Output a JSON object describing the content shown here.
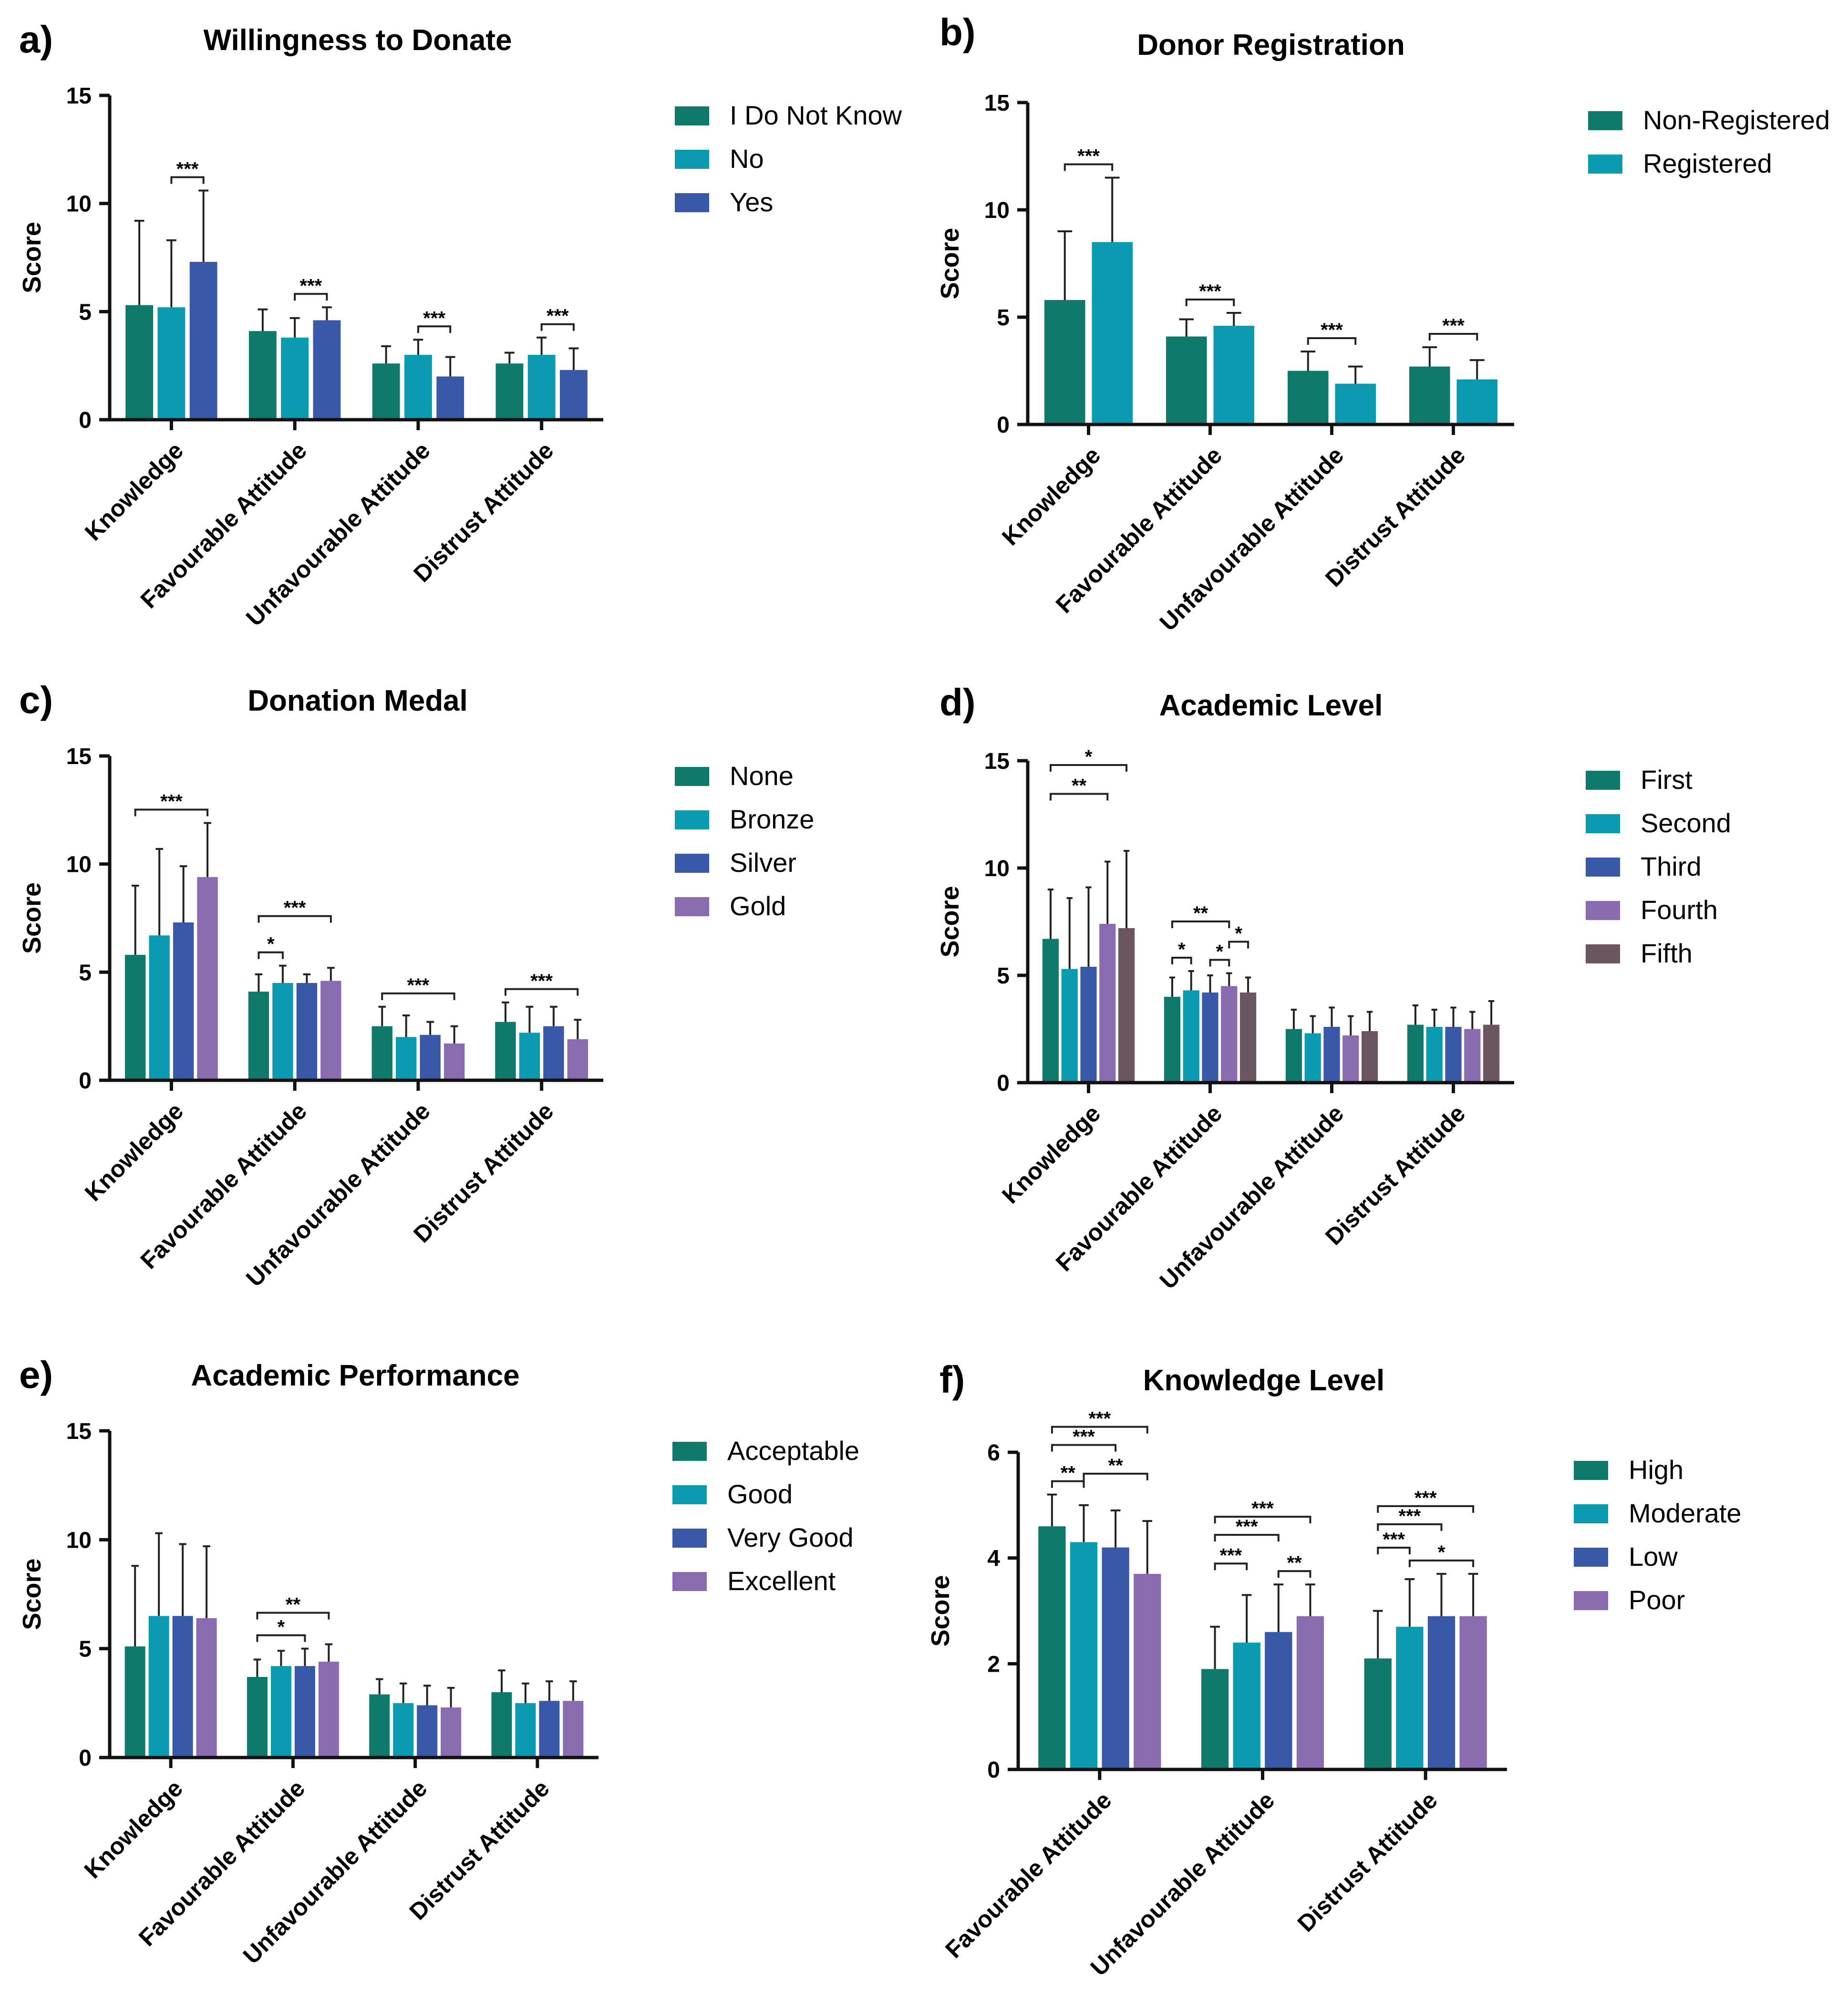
{
  "chart_data": [
    {
      "id": "a",
      "panel_label": "a)",
      "type": "bar",
      "title": "Willingness to Donate",
      "ylabel": "Score",
      "ylim": [
        0,
        15
      ],
      "yticks": [
        0,
        5,
        10,
        15
      ],
      "categories": [
        "Knowledge",
        "Favourable Attitude",
        "Unfavourable Attitude",
        "Distrust Attitude"
      ],
      "series": [
        {
          "name": "I Do Not Know",
          "color": "#0f7a6c",
          "values": [
            5.3,
            4.1,
            2.6,
            2.6
          ],
          "errors": [
            3.9,
            1.0,
            0.8,
            0.5
          ]
        },
        {
          "name": "No",
          "color": "#0a9bb0",
          "values": [
            5.2,
            3.8,
            3.0,
            3.0
          ],
          "errors": [
            3.1,
            0.9,
            0.7,
            0.8
          ]
        },
        {
          "name": "Yes",
          "color": "#3a58a8",
          "values": [
            7.3,
            4.6,
            2.0,
            2.3
          ],
          "errors": [
            3.3,
            0.6,
            0.9,
            1.0
          ]
        }
      ],
      "annotations": [
        {
          "category": 0,
          "from": 1,
          "to": 2,
          "label": "***",
          "level": 0
        },
        {
          "category": 1,
          "from": 1,
          "to": 2,
          "label": "***",
          "level": 0
        },
        {
          "category": 2,
          "from": 1,
          "to": 2,
          "label": "***",
          "level": 0
        },
        {
          "category": 3,
          "from": 1,
          "to": 2,
          "label": "***",
          "level": 0
        }
      ]
    },
    {
      "id": "b",
      "panel_label": "b)",
      "type": "bar",
      "title": "Donor Registration",
      "ylabel": "Score",
      "ylim": [
        0,
        15
      ],
      "yticks": [
        0,
        5,
        10,
        15
      ],
      "categories": [
        "Knowledge",
        "Favourable Attitude",
        "Unfavourable Attitude",
        "Distrust Attitude"
      ],
      "series": [
        {
          "name": "Non-Registered",
          "color": "#0f7a6c",
          "values": [
            5.8,
            4.1,
            2.5,
            2.7
          ],
          "errors": [
            3.2,
            0.8,
            0.9,
            0.9
          ]
        },
        {
          "name": "Registered",
          "color": "#0a9bb0",
          "values": [
            8.5,
            4.6,
            1.9,
            2.1
          ],
          "errors": [
            3.0,
            0.6,
            0.8,
            0.9
          ]
        }
      ],
      "annotations": [
        {
          "category": 0,
          "from": 0,
          "to": 1,
          "label": "***",
          "level": 0
        },
        {
          "category": 1,
          "from": 0,
          "to": 1,
          "label": "***",
          "level": 0
        },
        {
          "category": 2,
          "from": 0,
          "to": 1,
          "label": "***",
          "level": 0
        },
        {
          "category": 3,
          "from": 0,
          "to": 1,
          "label": "***",
          "level": 0
        }
      ]
    },
    {
      "id": "c",
      "panel_label": "c)",
      "type": "bar",
      "title": "Donation Medal",
      "ylabel": "Score",
      "ylim": [
        0,
        15
      ],
      "yticks": [
        0,
        5,
        10,
        15
      ],
      "categories": [
        "Knowledge",
        "Favourable Attitude",
        "Unfavourable Attitude",
        "Distrust Attitude"
      ],
      "series": [
        {
          "name": "None",
          "color": "#0f7a6c",
          "values": [
            5.8,
            4.1,
            2.5,
            2.7
          ],
          "errors": [
            3.2,
            0.8,
            0.9,
            0.9
          ]
        },
        {
          "name": "Bronze",
          "color": "#0a9bb0",
          "values": [
            6.7,
            4.5,
            2.0,
            2.2
          ],
          "errors": [
            4.0,
            0.8,
            1.0,
            1.2
          ]
        },
        {
          "name": "Silver",
          "color": "#3a58a8",
          "values": [
            7.3,
            4.5,
            2.1,
            2.5
          ],
          "errors": [
            2.6,
            0.4,
            0.6,
            0.9
          ]
        },
        {
          "name": "Gold",
          "color": "#8a6bb0",
          "values": [
            9.4,
            4.6,
            1.7,
            1.9
          ],
          "errors": [
            2.5,
            0.6,
            0.8,
            0.9
          ]
        }
      ],
      "annotations": [
        {
          "category": 0,
          "from": 0,
          "to": 3,
          "label": "***",
          "level": 0
        },
        {
          "category": 1,
          "from": 0,
          "to": 1,
          "label": "*",
          "level": 0
        },
        {
          "category": 1,
          "from": 0,
          "to": 3,
          "label": "***",
          "level": 2
        },
        {
          "category": 2,
          "from": 0,
          "to": 3,
          "label": "***",
          "level": 0
        },
        {
          "category": 3,
          "from": 0,
          "to": 3,
          "label": "***",
          "level": 0
        }
      ]
    },
    {
      "id": "d",
      "panel_label": "d)",
      "type": "bar",
      "title": "Academic Level",
      "ylabel": "Score",
      "ylim": [
        0,
        15
      ],
      "yticks": [
        0,
        5,
        10,
        15
      ],
      "categories": [
        "Knowledge",
        "Favourable Attitude",
        "Unfavourable Attitude",
        "Distrust Attitude"
      ],
      "series": [
        {
          "name": "First",
          "color": "#0f7a6c",
          "values": [
            6.7,
            4.0,
            2.5,
            2.7
          ],
          "errors": [
            2.3,
            0.9,
            0.9,
            0.9
          ]
        },
        {
          "name": "Second",
          "color": "#0a9bb0",
          "values": [
            5.3,
            4.3,
            2.3,
            2.6
          ],
          "errors": [
            3.3,
            0.9,
            0.8,
            0.8
          ]
        },
        {
          "name": "Third",
          "color": "#3a58a8",
          "values": [
            5.4,
            4.2,
            2.6,
            2.6
          ],
          "errors": [
            3.7,
            0.8,
            0.9,
            0.9
          ]
        },
        {
          "name": "Fourth",
          "color": "#8a6bb0",
          "values": [
            7.4,
            4.5,
            2.2,
            2.5
          ],
          "errors": [
            2.9,
            0.6,
            0.9,
            0.8
          ]
        },
        {
          "name": "Fifth",
          "color": "#6b5560",
          "values": [
            7.2,
            4.2,
            2.4,
            2.7
          ],
          "errors": [
            3.6,
            0.7,
            0.9,
            1.1
          ]
        }
      ],
      "annotations": [
        {
          "category": 0,
          "from": 0,
          "to": 3,
          "label": "**",
          "level": 3
        },
        {
          "category": 0,
          "from": 0,
          "to": 4,
          "label": "*",
          "level": 4
        },
        {
          "category": 1,
          "from": 0,
          "to": 1,
          "label": "*",
          "level": 0
        },
        {
          "category": 1,
          "from": 2,
          "to": 3,
          "label": "*",
          "level": 0
        },
        {
          "category": 1,
          "from": 3,
          "to": 4,
          "label": "*",
          "level": 1
        },
        {
          "category": 1,
          "from": 0,
          "to": 3,
          "label": "**",
          "level": 2
        }
      ]
    },
    {
      "id": "e",
      "panel_label": "e)",
      "type": "bar",
      "title": "Academic Performance",
      "ylabel": "Score",
      "ylim": [
        0,
        15
      ],
      "yticks": [
        0,
        5,
        10,
        15
      ],
      "categories": [
        "Knowledge",
        "Favourable Attitude",
        "Unfavourable Attitude",
        "Distrust Attitude"
      ],
      "series": [
        {
          "name": "Acceptable",
          "color": "#0f7a6c",
          "values": [
            5.1,
            3.7,
            2.9,
            3.0
          ],
          "errors": [
            3.7,
            0.8,
            0.7,
            1.0
          ]
        },
        {
          "name": "Good",
          "color": "#0a9bb0",
          "values": [
            6.5,
            4.2,
            2.5,
            2.5
          ],
          "errors": [
            3.8,
            0.7,
            0.9,
            0.9
          ]
        },
        {
          "name": "Very Good",
          "color": "#3a58a8",
          "values": [
            6.5,
            4.2,
            2.4,
            2.6
          ],
          "errors": [
            3.3,
            0.8,
            0.9,
            0.9
          ]
        },
        {
          "name": "Excellent",
          "color": "#8a6bb0",
          "values": [
            6.4,
            4.4,
            2.3,
            2.6
          ],
          "errors": [
            3.3,
            0.8,
            0.9,
            0.9
          ]
        }
      ],
      "annotations": [
        {
          "category": 1,
          "from": 0,
          "to": 2,
          "label": "*",
          "level": 0
        },
        {
          "category": 1,
          "from": 0,
          "to": 3,
          "label": "**",
          "level": 1
        }
      ]
    },
    {
      "id": "f",
      "panel_label": "f)",
      "type": "bar",
      "title": "Knowledge Level",
      "ylabel": "Score",
      "ylim": [
        0,
        6
      ],
      "yticks": [
        0,
        2,
        4,
        6
      ],
      "categories": [
        "Favourable Attitude",
        "Unfavourable Attitude",
        "Distrust Attitude"
      ],
      "series": [
        {
          "name": "High",
          "color": "#0f7a6c",
          "values": [
            4.6,
            1.9,
            2.1
          ],
          "errors": [
            0.6,
            0.8,
            0.9
          ]
        },
        {
          "name": "Moderate",
          "color": "#0a9bb0",
          "values": [
            4.3,
            2.4,
            2.7
          ],
          "errors": [
            0.7,
            0.9,
            0.9
          ]
        },
        {
          "name": "Low",
          "color": "#3a58a8",
          "values": [
            4.2,
            2.6,
            2.9
          ],
          "errors": [
            0.7,
            0.9,
            0.8
          ]
        },
        {
          "name": "Poor",
          "color": "#8a6bb0",
          "values": [
            3.7,
            2.9,
            2.9
          ],
          "errors": [
            1.0,
            0.6,
            0.8
          ]
        }
      ],
      "annotations": [
        {
          "category": 0,
          "from": 0,
          "to": 1,
          "label": "**",
          "level": 0
        },
        {
          "category": 0,
          "from": 1,
          "to": 3,
          "label": "**",
          "level": 1
        },
        {
          "category": 0,
          "from": 0,
          "to": 2,
          "label": "***",
          "level": 2
        },
        {
          "category": 0,
          "from": 0,
          "to": 3,
          "label": "***",
          "level": 3
        },
        {
          "category": 1,
          "from": 2,
          "to": 3,
          "label": "**",
          "level": 0
        },
        {
          "category": 1,
          "from": 0,
          "to": 1,
          "label": "***",
          "level": 1
        },
        {
          "category": 1,
          "from": 0,
          "to": 2,
          "label": "***",
          "level": 2
        },
        {
          "category": 1,
          "from": 0,
          "to": 3,
          "label": "***",
          "level": 3
        },
        {
          "category": 2,
          "from": 1,
          "to": 3,
          "label": "*",
          "level": 0
        },
        {
          "category": 2,
          "from": 0,
          "to": 1,
          "label": "***",
          "level": 1
        },
        {
          "category": 2,
          "from": 0,
          "to": 2,
          "label": "***",
          "level": 2
        },
        {
          "category": 2,
          "from": 0,
          "to": 3,
          "label": "***",
          "level": 3
        }
      ]
    }
  ]
}
